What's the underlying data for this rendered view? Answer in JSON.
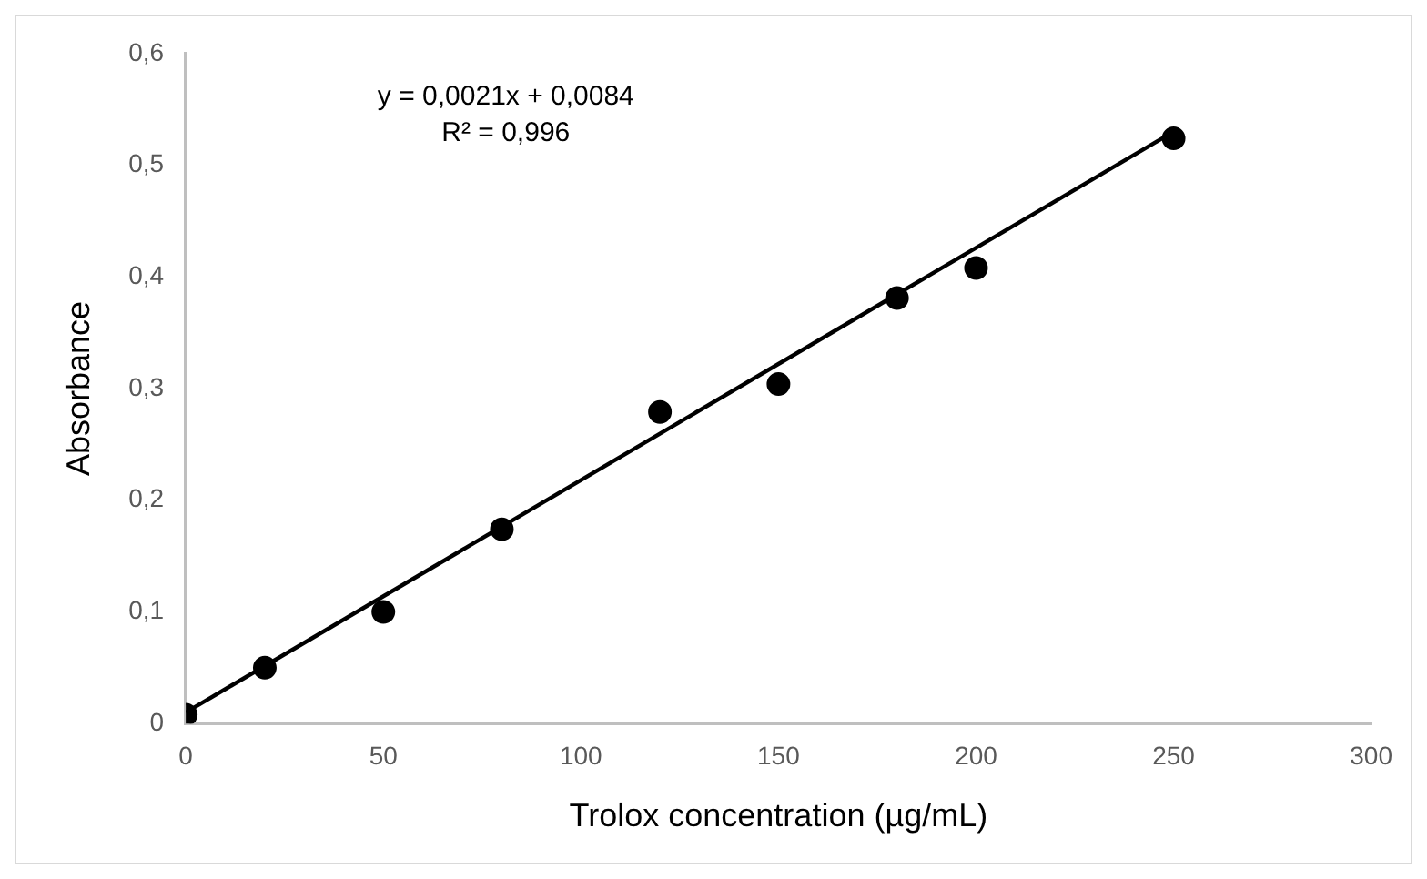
{
  "chart_data": {
    "type": "scatter",
    "xlabel": "Trolox concentration (µg/mL)",
    "ylabel": "Absorbance",
    "series": [
      {
        "type": "scatter",
        "color": "#000000",
        "x": [
          0,
          20,
          50,
          80,
          120,
          150,
          180,
          200,
          250
        ],
        "values": [
          0.008,
          0.05,
          0.1,
          0.174,
          0.279,
          0.304,
          0.381,
          0.408,
          0.524
        ]
      },
      {
        "type": "line",
        "color": "#000000",
        "marker": "none",
        "x": [
          0,
          250
        ],
        "values": [
          0.01,
          0.53
        ]
      }
    ],
    "xlim": [
      0,
      300
    ],
    "xticks": [
      0,
      50,
      100,
      150,
      200,
      250,
      300
    ],
    "ylim": [
      0,
      0.6
    ],
    "yticks": [
      {
        "value": 0,
        "label": "0"
      },
      {
        "value": 0.1,
        "label": "0,1"
      },
      {
        "value": 0.2,
        "label": "0,2"
      },
      {
        "value": 0.3,
        "label": "0,3"
      },
      {
        "value": 0.4,
        "label": "0,4"
      },
      {
        "value": 0.5,
        "label": "0,5"
      },
      {
        "value": 0.6,
        "label": "0,6"
      }
    ],
    "grid": false,
    "legend": false,
    "marker": "circle",
    "annotations": [
      "y = 0,0021x + 0,0084",
      "R² = 0,996"
    ]
  }
}
